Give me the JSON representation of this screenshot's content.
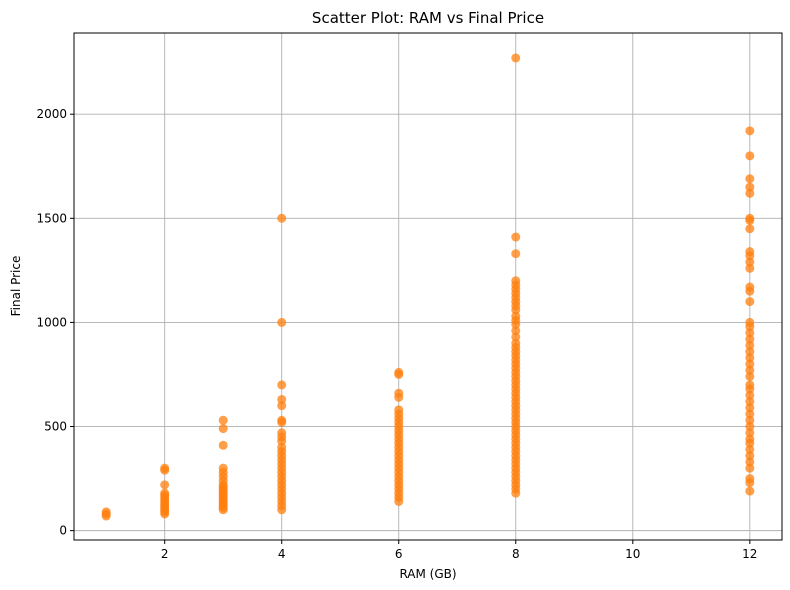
{
  "chart_data": {
    "type": "scatter",
    "title": "Scatter Plot: RAM vs Final Price",
    "xlabel": "RAM (GB)",
    "ylabel": "Final Price",
    "xlim": [
      0.45,
      12.55
    ],
    "ylim": [
      -45,
      2390
    ],
    "xticks": [
      2,
      4,
      6,
      8,
      10,
      12
    ],
    "yticks": [
      0,
      500,
      1000,
      1500,
      2000
    ],
    "grid": true,
    "marker_color": "#ff7f0e",
    "marker_alpha": 0.75,
    "series": [
      {
        "points": [
          {
            "x": 1,
            "y": 70
          },
          {
            "x": 1,
            "y": 80
          },
          {
            "x": 1,
            "y": 90
          },
          {
            "x": 2,
            "y": 80
          },
          {
            "x": 2,
            "y": 90
          },
          {
            "x": 2,
            "y": 100
          },
          {
            "x": 2,
            "y": 110
          },
          {
            "x": 2,
            "y": 120
          },
          {
            "x": 2,
            "y": 130
          },
          {
            "x": 2,
            "y": 140
          },
          {
            "x": 2,
            "y": 150
          },
          {
            "x": 2,
            "y": 160
          },
          {
            "x": 2,
            "y": 170
          },
          {
            "x": 2,
            "y": 180
          },
          {
            "x": 2,
            "y": 220
          },
          {
            "x": 2,
            "y": 290
          },
          {
            "x": 2,
            "y": 300
          },
          {
            "x": 3,
            "y": 100
          },
          {
            "x": 3,
            "y": 110
          },
          {
            "x": 3,
            "y": 120
          },
          {
            "x": 3,
            "y": 130
          },
          {
            "x": 3,
            "y": 140
          },
          {
            "x": 3,
            "y": 150
          },
          {
            "x": 3,
            "y": 160
          },
          {
            "x": 3,
            "y": 170
          },
          {
            "x": 3,
            "y": 180
          },
          {
            "x": 3,
            "y": 190
          },
          {
            "x": 3,
            "y": 200
          },
          {
            "x": 3,
            "y": 210
          },
          {
            "x": 3,
            "y": 220
          },
          {
            "x": 3,
            "y": 240
          },
          {
            "x": 3,
            "y": 260
          },
          {
            "x": 3,
            "y": 280
          },
          {
            "x": 3,
            "y": 300
          },
          {
            "x": 3,
            "y": 410
          },
          {
            "x": 3,
            "y": 490
          },
          {
            "x": 3,
            "y": 530
          },
          {
            "x": 4,
            "y": 100
          },
          {
            "x": 4,
            "y": 120
          },
          {
            "x": 4,
            "y": 140
          },
          {
            "x": 4,
            "y": 160
          },
          {
            "x": 4,
            "y": 180
          },
          {
            "x": 4,
            "y": 200
          },
          {
            "x": 4,
            "y": 220
          },
          {
            "x": 4,
            "y": 240
          },
          {
            "x": 4,
            "y": 260
          },
          {
            "x": 4,
            "y": 280
          },
          {
            "x": 4,
            "y": 300
          },
          {
            "x": 4,
            "y": 320
          },
          {
            "x": 4,
            "y": 340
          },
          {
            "x": 4,
            "y": 360
          },
          {
            "x": 4,
            "y": 380
          },
          {
            "x": 4,
            "y": 400
          },
          {
            "x": 4,
            "y": 430
          },
          {
            "x": 4,
            "y": 450
          },
          {
            "x": 4,
            "y": 470
          },
          {
            "x": 4,
            "y": 520
          },
          {
            "x": 4,
            "y": 530
          },
          {
            "x": 4,
            "y": 600
          },
          {
            "x": 4,
            "y": 630
          },
          {
            "x": 4,
            "y": 700
          },
          {
            "x": 4,
            "y": 1000
          },
          {
            "x": 4,
            "y": 1500
          },
          {
            "x": 6,
            "y": 140
          },
          {
            "x": 6,
            "y": 160
          },
          {
            "x": 6,
            "y": 180
          },
          {
            "x": 6,
            "y": 200
          },
          {
            "x": 6,
            "y": 220
          },
          {
            "x": 6,
            "y": 240
          },
          {
            "x": 6,
            "y": 260
          },
          {
            "x": 6,
            "y": 280
          },
          {
            "x": 6,
            "y": 300
          },
          {
            "x": 6,
            "y": 320
          },
          {
            "x": 6,
            "y": 340
          },
          {
            "x": 6,
            "y": 360
          },
          {
            "x": 6,
            "y": 380
          },
          {
            "x": 6,
            "y": 400
          },
          {
            "x": 6,
            "y": 420
          },
          {
            "x": 6,
            "y": 440
          },
          {
            "x": 6,
            "y": 460
          },
          {
            "x": 6,
            "y": 480
          },
          {
            "x": 6,
            "y": 500
          },
          {
            "x": 6,
            "y": 520
          },
          {
            "x": 6,
            "y": 540
          },
          {
            "x": 6,
            "y": 560
          },
          {
            "x": 6,
            "y": 580
          },
          {
            "x": 6,
            "y": 640
          },
          {
            "x": 6,
            "y": 660
          },
          {
            "x": 6,
            "y": 750
          },
          {
            "x": 6,
            "y": 760
          },
          {
            "x": 8,
            "y": 180
          },
          {
            "x": 8,
            "y": 200
          },
          {
            "x": 8,
            "y": 220
          },
          {
            "x": 8,
            "y": 240
          },
          {
            "x": 8,
            "y": 260
          },
          {
            "x": 8,
            "y": 280
          },
          {
            "x": 8,
            "y": 300
          },
          {
            "x": 8,
            "y": 320
          },
          {
            "x": 8,
            "y": 340
          },
          {
            "x": 8,
            "y": 360
          },
          {
            "x": 8,
            "y": 380
          },
          {
            "x": 8,
            "y": 400
          },
          {
            "x": 8,
            "y": 420
          },
          {
            "x": 8,
            "y": 440
          },
          {
            "x": 8,
            "y": 460
          },
          {
            "x": 8,
            "y": 480
          },
          {
            "x": 8,
            "y": 500
          },
          {
            "x": 8,
            "y": 520
          },
          {
            "x": 8,
            "y": 540
          },
          {
            "x": 8,
            "y": 560
          },
          {
            "x": 8,
            "y": 580
          },
          {
            "x": 8,
            "y": 600
          },
          {
            "x": 8,
            "y": 620
          },
          {
            "x": 8,
            "y": 640
          },
          {
            "x": 8,
            "y": 660
          },
          {
            "x": 8,
            "y": 680
          },
          {
            "x": 8,
            "y": 700
          },
          {
            "x": 8,
            "y": 720
          },
          {
            "x": 8,
            "y": 740
          },
          {
            "x": 8,
            "y": 760
          },
          {
            "x": 8,
            "y": 780
          },
          {
            "x": 8,
            "y": 800
          },
          {
            "x": 8,
            "y": 820
          },
          {
            "x": 8,
            "y": 840
          },
          {
            "x": 8,
            "y": 860
          },
          {
            "x": 8,
            "y": 880
          },
          {
            "x": 8,
            "y": 900
          },
          {
            "x": 8,
            "y": 930
          },
          {
            "x": 8,
            "y": 960
          },
          {
            "x": 8,
            "y": 990
          },
          {
            "x": 8,
            "y": 1010
          },
          {
            "x": 8,
            "y": 1030
          },
          {
            "x": 8,
            "y": 1060
          },
          {
            "x": 8,
            "y": 1080
          },
          {
            "x": 8,
            "y": 1100
          },
          {
            "x": 8,
            "y": 1120
          },
          {
            "x": 8,
            "y": 1140
          },
          {
            "x": 8,
            "y": 1160
          },
          {
            "x": 8,
            "y": 1180
          },
          {
            "x": 8,
            "y": 1200
          },
          {
            "x": 8,
            "y": 1330
          },
          {
            "x": 8,
            "y": 1410
          },
          {
            "x": 8,
            "y": 2270
          },
          {
            "x": 12,
            "y": 190
          },
          {
            "x": 12,
            "y": 230
          },
          {
            "x": 12,
            "y": 250
          },
          {
            "x": 12,
            "y": 300
          },
          {
            "x": 12,
            "y": 330
          },
          {
            "x": 12,
            "y": 360
          },
          {
            "x": 12,
            "y": 390
          },
          {
            "x": 12,
            "y": 420
          },
          {
            "x": 12,
            "y": 440
          },
          {
            "x": 12,
            "y": 470
          },
          {
            "x": 12,
            "y": 500
          },
          {
            "x": 12,
            "y": 530
          },
          {
            "x": 12,
            "y": 560
          },
          {
            "x": 12,
            "y": 590
          },
          {
            "x": 12,
            "y": 620
          },
          {
            "x": 12,
            "y": 650
          },
          {
            "x": 12,
            "y": 680
          },
          {
            "x": 12,
            "y": 700
          },
          {
            "x": 12,
            "y": 740
          },
          {
            "x": 12,
            "y": 770
          },
          {
            "x": 12,
            "y": 800
          },
          {
            "x": 12,
            "y": 830
          },
          {
            "x": 12,
            "y": 860
          },
          {
            "x": 12,
            "y": 890
          },
          {
            "x": 12,
            "y": 920
          },
          {
            "x": 12,
            "y": 950
          },
          {
            "x": 12,
            "y": 980
          },
          {
            "x": 12,
            "y": 1000
          },
          {
            "x": 12,
            "y": 1100
          },
          {
            "x": 12,
            "y": 1150
          },
          {
            "x": 12,
            "y": 1170
          },
          {
            "x": 12,
            "y": 1260
          },
          {
            "x": 12,
            "y": 1290
          },
          {
            "x": 12,
            "y": 1320
          },
          {
            "x": 12,
            "y": 1340
          },
          {
            "x": 12,
            "y": 1450
          },
          {
            "x": 12,
            "y": 1490
          },
          {
            "x": 12,
            "y": 1500
          },
          {
            "x": 12,
            "y": 1620
          },
          {
            "x": 12,
            "y": 1650
          },
          {
            "x": 12,
            "y": 1690
          },
          {
            "x": 12,
            "y": 1800
          },
          {
            "x": 12,
            "y": 1920
          }
        ]
      }
    ]
  }
}
